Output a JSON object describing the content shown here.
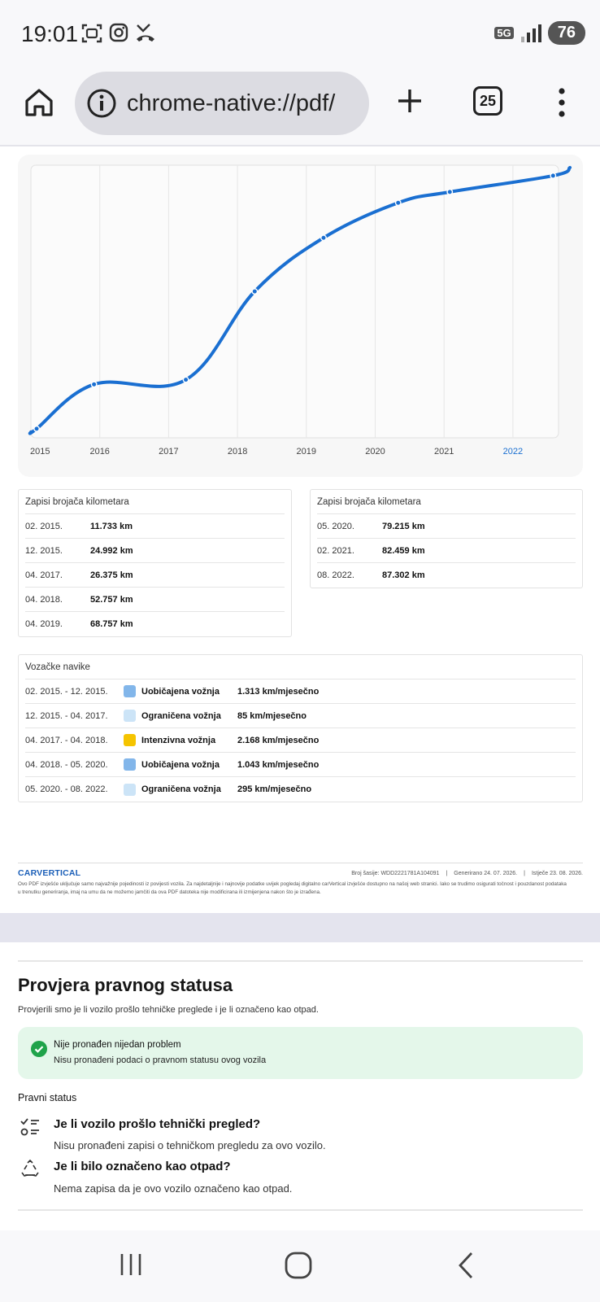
{
  "status_bar": {
    "time": "19:01",
    "left_icons": [
      "screenshot-icon",
      "instagram-icon",
      "missed-call-icon"
    ],
    "network": "5G",
    "battery": "76"
  },
  "browser": {
    "url": "chrome-native://pdf/",
    "tab_count": "25"
  },
  "chart_data": {
    "type": "line",
    "title": "",
    "xlabel": "",
    "ylabel": "",
    "x_ticks": [
      "2015",
      "2016",
      "2017",
      "2018",
      "2019",
      "2020",
      "2021",
      "2022"
    ],
    "highlighted_tick": "2022",
    "series": [
      {
        "color": "#1a6fd1",
        "points": [
          {
            "x": "2015-02",
            "y": 11733
          },
          {
            "x": "2015-12",
            "y": 24992
          },
          {
            "x": "2017-04",
            "y": 26375
          },
          {
            "x": "2018-04",
            "y": 52757
          },
          {
            "x": "2019-04",
            "y": 68757
          },
          {
            "x": "2020-05",
            "y": 79215
          },
          {
            "x": "2021-02",
            "y": 82459
          },
          {
            "x": "2022-08",
            "y": 87302
          }
        ]
      }
    ],
    "grid": true
  },
  "odometer_left": {
    "title": "Zapisi brojača kilometara",
    "rows": [
      {
        "date": "02. 2015.",
        "km": "11.733 km"
      },
      {
        "date": "12. 2015.",
        "km": "24.992 km"
      },
      {
        "date": "04. 2017.",
        "km": "26.375 km"
      },
      {
        "date": "04. 2018.",
        "km": "52.757 km"
      },
      {
        "date": "04. 2019.",
        "km": "68.757 km"
      }
    ]
  },
  "odometer_right": {
    "title": "Zapisi brojača kilometara",
    "rows": [
      {
        "date": "05. 2020.",
        "km": "79.215 km"
      },
      {
        "date": "02. 2021.",
        "km": "82.459 km"
      },
      {
        "date": "08. 2022.",
        "km": "87.302 km"
      }
    ]
  },
  "habits": {
    "title": "Vozačke navike",
    "rows": [
      {
        "period": "02. 2015. - 12. 2015.",
        "type": "Uobičajena vožnja",
        "rate": "1.313 km/mjesečno",
        "color": "#82b6ea"
      },
      {
        "period": "12. 2015. - 04. 2017.",
        "type": "Ograničena vožnja",
        "rate": "85 km/mjesečno",
        "color": "#cce4f7"
      },
      {
        "period": "04. 2017. - 04. 2018.",
        "type": "Intenzivna vožnja",
        "rate": "2.168 km/mjesečno",
        "color": "#f5c400"
      },
      {
        "period": "04. 2018. - 05. 2020.",
        "type": "Uobičajena vožnja",
        "rate": "1.043 km/mjesečno",
        "color": "#82b6ea"
      },
      {
        "period": "05. 2020. - 08. 2022.",
        "type": "Ograničena vožnja",
        "rate": "295 km/mjesečno",
        "color": "#cce4f7"
      }
    ]
  },
  "footer": {
    "logo": "CARVERTICAL",
    "vin": "Broj šasije:  WDD2221781A104091",
    "generated": "Generirano  24. 07. 2026.",
    "expires": "Istječe  23. 08. 2026.",
    "note": "Ovo PDF izvješće uključuje samo najvažnije pojedinosti iz povijesti vozila. Za najdetaljnije i najnovije podatke uvijek pogledaj digitalno carVertical izvješće dostupno na našoj web stranici. Iako se trudimo osigurati točnost i pouzdanost podataka u trenutku generiranja, imaj na umu da ne možemo jamčiti da ova PDF datoteka nije modificirana ili izmijenjena nakon što je izrađena."
  },
  "legal": {
    "title": "Provjera pravnog statusa",
    "subtitle": "Provjerili smo je li vozilo prošlo tehničke preglede i je li označeno kao otpad.",
    "ok_title": "Nije pronađen nijedan problem",
    "ok_text": "Nisu pronađeni podaci o pravnom statusu ovog vozila",
    "status_label": "Pravni status",
    "q1_title": "Je li vozilo prošlo tehnički pregled?",
    "q1_answer": "Nisu pronađeni zapisi o tehničkom pregledu za ovo vozilo.",
    "q2_title": "Je li bilo označeno kao otpad?",
    "q2_answer": "Nema zapisa da je ovo vozilo označeno kao otpad."
  }
}
